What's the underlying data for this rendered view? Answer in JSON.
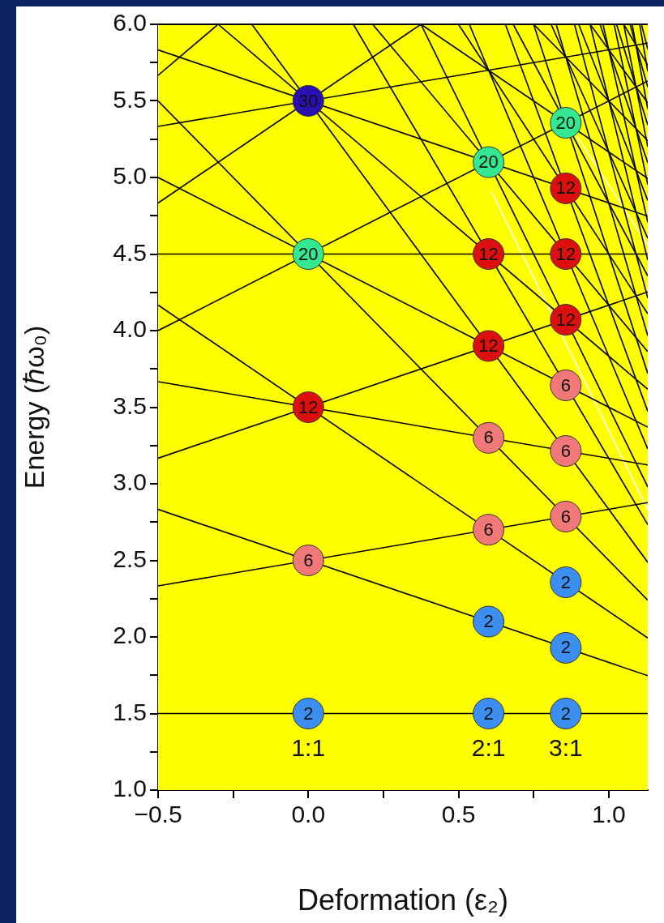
{
  "chart_data": {
    "type": "line",
    "xlabel": "Deformation (ε₂)",
    "ylabel": "Energy (ℏω₀)",
    "legend": false,
    "xlim": [
      -0.5,
      1.13
    ],
    "ylim": [
      1,
      6
    ],
    "xticks": [
      {
        "value": -0.5,
        "label": "−0.5"
      },
      {
        "value": -0.25,
        "label": null
      },
      {
        "value": 0,
        "label": "0.0"
      },
      {
        "value": 0.25,
        "label": null
      },
      {
        "value": 0.5,
        "label": "0.5"
      },
      {
        "value": 0.75,
        "label": null
      },
      {
        "value": 1,
        "label": "1.0"
      }
    ],
    "yticks": [
      {
        "value": 1,
        "label": "1.0"
      },
      {
        "value": 1.25,
        "label": null
      },
      {
        "value": 1.5,
        "label": "1.5"
      },
      {
        "value": 1.75,
        "label": null
      },
      {
        "value": 2,
        "label": "2.0"
      },
      {
        "value": 2.25,
        "label": null
      },
      {
        "value": 2.5,
        "label": "2.5"
      },
      {
        "value": 2.75,
        "label": null
      },
      {
        "value": 3,
        "label": "3.0"
      },
      {
        "value": 3.25,
        "label": null
      },
      {
        "value": 3.5,
        "label": "3.5"
      },
      {
        "value": 3.75,
        "label": null
      },
      {
        "value": 4,
        "label": "4.0"
      },
      {
        "value": 4.25,
        "label": null
      },
      {
        "value": 4.5,
        "label": "4.5"
      },
      {
        "value": 4.75,
        "label": null
      },
      {
        "value": 5,
        "label": "5.0"
      },
      {
        "value": 5.25,
        "label": null
      },
      {
        "value": 5.5,
        "label": "5.5"
      },
      {
        "value": 5.75,
        "label": null
      },
      {
        "value": 6,
        "label": "6.0"
      }
    ],
    "annotations": [
      "1:1",
      "2:1",
      "3:1",
      {
        "text": "2",
        "x": 0,
        "y": 1.5
      },
      {
        "text": "2",
        "x": 0.6,
        "y": 1.5
      },
      {
        "text": "2",
        "x": 0.857,
        "y": 1.5
      },
      {
        "text": "2",
        "x": 0.6,
        "y": 2.1
      },
      {
        "text": "2",
        "x": 0.857,
        "y": 1.929
      },
      {
        "text": "2",
        "x": 0.857,
        "y": 2.357
      },
      {
        "text": "6",
        "x": 0,
        "y": 2.5
      },
      {
        "text": "6",
        "x": 0.6,
        "y": 2.7
      },
      {
        "text": "6",
        "x": 0.6,
        "y": 3.3
      },
      {
        "text": "6",
        "x": 0.857,
        "y": 2.786
      },
      {
        "text": "6",
        "x": 0.857,
        "y": 3.214
      },
      {
        "text": "6",
        "x": 0.857,
        "y": 3.643
      },
      {
        "text": "12",
        "x": 0,
        "y": 3.5
      },
      {
        "text": "12",
        "x": 0.6,
        "y": 3.9
      },
      {
        "text": "12",
        "x": 0.6,
        "y": 4.5
      },
      {
        "text": "12",
        "x": 0.857,
        "y": 4.071
      },
      {
        "text": "12",
        "x": 0.857,
        "y": 4.5
      },
      {
        "text": "12",
        "x": 0.857,
        "y": 4.929
      },
      {
        "text": "20",
        "x": 0,
        "y": 4.5
      },
      {
        "text": "20",
        "x": 0.6,
        "y": 5.1
      },
      {
        "text": "20",
        "x": 0.857,
        "y": 5.357
      },
      {
        "text": "30",
        "x": 0,
        "y": 5.5
      }
    ],
    "series": [
      {
        "color": "#000000",
        "x": [
          -0.5,
          1.13
        ],
        "values": [
          1.5,
          1.5
        ]
      },
      {
        "color": "#000000",
        "x": [
          -0.5,
          1.13
        ],
        "values": [
          2.333,
          2.877
        ]
      },
      {
        "color": "#000000",
        "x": [
          -0.5,
          1.13
        ],
        "values": [
          2.833,
          1.747
        ]
      },
      {
        "color": "#000000",
        "x": [
          -0.5,
          1.13
        ],
        "values": [
          3.167,
          4.253
        ]
      },
      {
        "color": "#000000",
        "x": [
          -0.5,
          1.13
        ],
        "values": [
          3.667,
          3.123
        ]
      },
      {
        "color": "#000000",
        "x": [
          -0.5,
          1.13
        ],
        "values": [
          4.167,
          1.993
        ]
      },
      {
        "color": "#000000",
        "x": [
          -0.5,
          1.13
        ],
        "values": [
          4,
          5.63
        ]
      },
      {
        "color": "#000000",
        "x": [
          -0.5,
          1.13
        ],
        "values": [
          4.5,
          4.5
        ]
      },
      {
        "color": "#000000",
        "x": [
          -0.5,
          1.13
        ],
        "values": [
          5,
          3.37
        ]
      },
      {
        "color": "#000000",
        "x": [
          -0.5,
          1.13
        ],
        "values": [
          5.5,
          2.24
        ]
      },
      {
        "color": "#000000",
        "x": [
          -0.5,
          0.375
        ],
        "values": [
          4.833,
          6
        ]
      },
      {
        "color": "#000000",
        "x": [
          -0.5,
          1.13
        ],
        "values": [
          5.333,
          5.877
        ]
      },
      {
        "color": "#000000",
        "x": [
          -0.5,
          1.13
        ],
        "values": [
          5.833,
          4.747
        ]
      },
      {
        "color": "#000000",
        "x": [
          -0.3,
          1.13
        ],
        "values": [
          6,
          3.617
        ]
      },
      {
        "color": "#000000",
        "x": [
          -0.188,
          1.13
        ],
        "values": [
          6,
          2.487
        ]
      },
      {
        "color": "#000000",
        "x": [
          -0.5,
          -0.3
        ],
        "values": [
          5.667,
          6
        ]
      },
      {
        "color": "#000000",
        "x": [
          0.375,
          1.13
        ],
        "values": [
          6,
          4.993
        ]
      },
      {
        "color": "#000000",
        "x": [
          0.214,
          1.13
        ],
        "values": [
          6,
          3.863
        ]
      },
      {
        "color": "#000000",
        "x": [
          0.15,
          1.13
        ],
        "values": [
          6,
          2.733
        ]
      },
      {
        "color": "#000000",
        "x": [
          0.75,
          1.13
        ],
        "values": [
          6,
          5.24
        ]
      },
      {
        "color": "#000000",
        "x": [
          0.5,
          1.13
        ],
        "values": [
          6,
          4.11
        ]
      },
      {
        "color": "#000000",
        "x": [
          0.375,
          1.13
        ],
        "values": [
          6,
          2.98
        ]
      },
      {
        "color": "#000000",
        "x": [
          0.938,
          1.13
        ],
        "values": [
          6,
          5.487
        ]
      },
      {
        "color": "#000000",
        "x": [
          0.682,
          1.13
        ],
        "values": [
          6,
          4.357
        ]
      },
      {
        "color": "#000000",
        "x": [
          0.536,
          1.13
        ],
        "values": [
          6,
          3.227
        ]
      },
      {
        "color": "#000000",
        "x": [
          1.05,
          1.13
        ],
        "values": [
          6,
          5.733
        ]
      },
      {
        "color": "#000000",
        "x": [
          0.808,
          1.13
        ],
        "values": [
          6,
          4.603
        ]
      },
      {
        "color": "#000000",
        "x": [
          0.656,
          1.13
        ],
        "values": [
          6,
          3.473
        ]
      },
      {
        "color": "#000000",
        "x": [
          0.9,
          1.13
        ],
        "values": [
          6,
          4.85
        ]
      },
      {
        "color": "#000000",
        "x": [
          0.75,
          1.13
        ],
        "values": [
          6,
          3.72
        ]
      },
      {
        "color": "#000000",
        "x": [
          0.971,
          1.13
        ],
        "values": [
          6,
          5.097
        ]
      },
      {
        "color": "#000000",
        "x": [
          0.825,
          1.13
        ],
        "values": [
          6,
          3.967
        ]
      },
      {
        "color": "#000000",
        "x": [
          1.026,
          1.13
        ],
        "values": [
          6,
          5.343
        ]
      },
      {
        "color": "#000000",
        "x": [
          0.886,
          1.13
        ],
        "values": [
          6,
          4.213
        ]
      },
      {
        "color": "#000000",
        "x": [
          1.071,
          1.13
        ],
        "values": [
          6,
          5.59
        ]
      },
      {
        "color": "#000000",
        "x": [
          0.938,
          1.13
        ],
        "values": [
          6,
          4.46
        ]
      },
      {
        "color": "#000000",
        "x": [
          1.109,
          1.13
        ],
        "values": [
          6,
          5.837
        ]
      },
      {
        "color": "#000000",
        "x": [
          0.981,
          1.13
        ],
        "values": [
          6,
          4.707
        ]
      },
      {
        "color": "#000000",
        "x": [
          1.018,
          1.13
        ],
        "values": [
          6,
          4.953
        ]
      },
      {
        "color": "#000000",
        "x": [
          1.05,
          1.13
        ],
        "values": [
          6,
          5.2
        ]
      },
      {
        "color": "#000000",
        "x": [
          1.078,
          1.13
        ],
        "values": [
          6,
          5.447
        ]
      },
      {
        "color": "#000000",
        "x": [
          1.103,
          1.13
        ],
        "values": [
          6,
          5.693
        ]
      },
      {
        "color": "#ffffff",
        "x": [
          0.61,
          1.13
        ],
        "values": [
          4.906,
          2.83
        ]
      },
      {
        "color": "#ffffff",
        "x": [
          0.895,
          1.13
        ],
        "values": [
          5.267,
          4.56
        ]
      },
      {
        "type": "scatter",
        "marker": "circle",
        "color": "#3c8ff0",
        "x": [
          0,
          0.6,
          0.857,
          0.6,
          0.857,
          0.857
        ],
        "values": [
          1.5,
          1.5,
          1.5,
          2.1,
          1.929,
          2.357
        ]
      },
      {
        "type": "scatter",
        "marker": "circle",
        "color": "#f07878",
        "x": [
          0,
          0.6,
          0.6,
          0.857,
          0.857,
          0.857
        ],
        "values": [
          2.5,
          2.7,
          3.3,
          2.786,
          3.214,
          3.643
        ]
      },
      {
        "type": "scatter",
        "marker": "circle",
        "color": "#dd1010",
        "x": [
          0,
          0.6,
          0.6,
          0.857,
          0.857,
          0.857
        ],
        "values": [
          3.5,
          3.9,
          4.5,
          4.071,
          4.5,
          4.929
        ]
      },
      {
        "type": "scatter",
        "marker": "circle",
        "color": "#33e890",
        "x": [
          0,
          0.6,
          0.857
        ],
        "values": [
          4.5,
          5.1,
          5.357
        ]
      },
      {
        "type": "scatter",
        "marker": "circle",
        "color": "#2a10b0",
        "x": [
          0
        ],
        "values": [
          5.5
        ]
      }
    ]
  }
}
